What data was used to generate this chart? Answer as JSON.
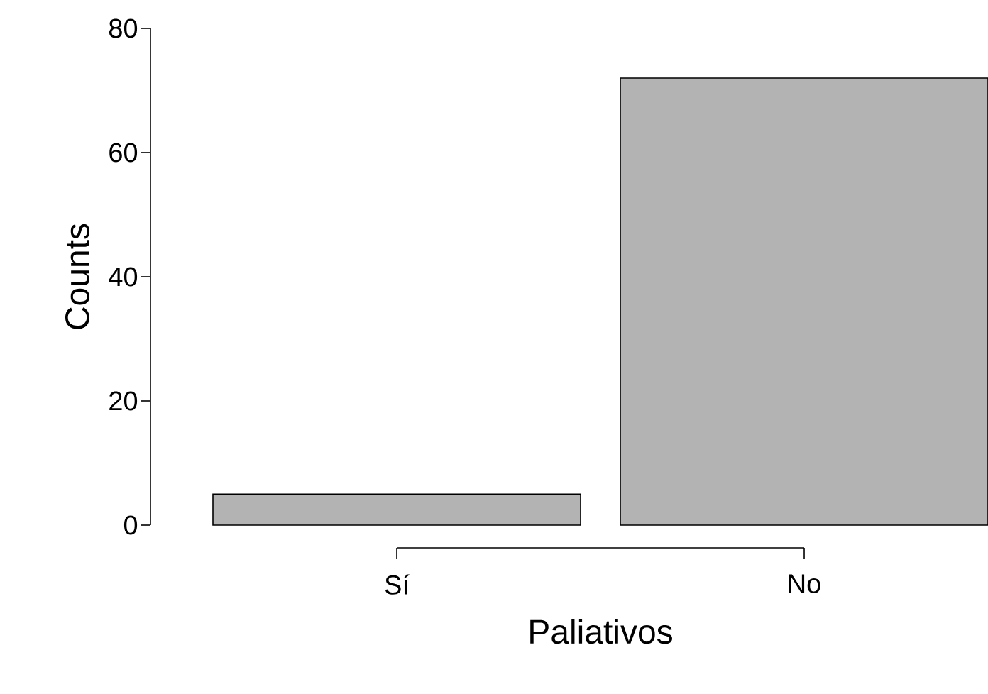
{
  "chart_data": {
    "type": "bar",
    "xlabel": "Paliativos",
    "ylabel": "Counts",
    "categories": [
      "Sí",
      "No"
    ],
    "values": [
      5,
      72
    ],
    "color": "#b3b3b3",
    "ylim": [
      0,
      80
    ],
    "yticks": [
      0,
      20,
      40,
      60,
      80
    ]
  }
}
